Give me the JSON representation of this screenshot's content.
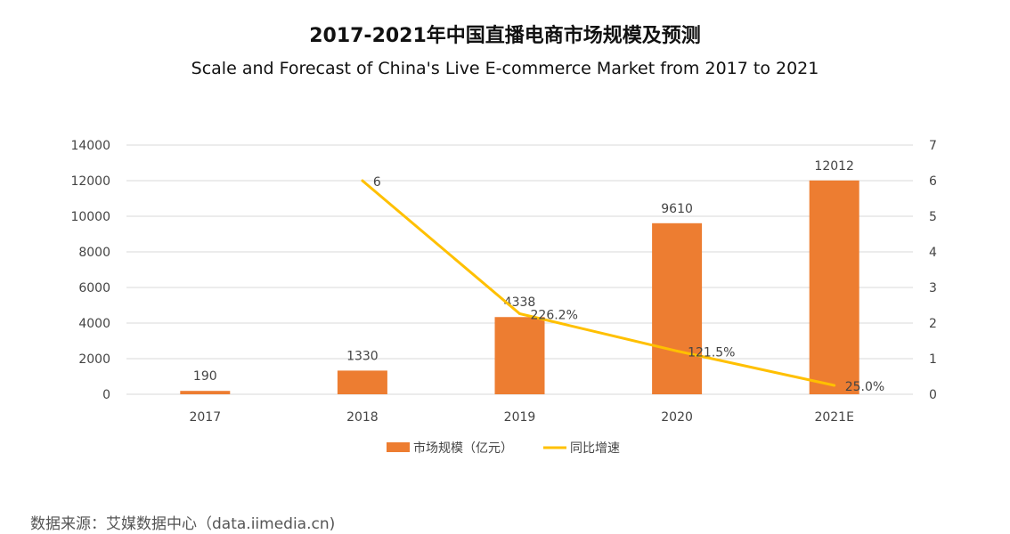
{
  "chart_data": {
    "type": "bar",
    "title": "2017-2021年中国直播电商市场规模及预测",
    "subtitle": "Scale and Forecast of China's Live E-commerce Market from 2017 to 2021",
    "categories": [
      "2017",
      "2018",
      "2019",
      "2020",
      "2021E"
    ],
    "series": [
      {
        "name": "市场规模（亿元）",
        "type": "bar",
        "axis": "left",
        "color": "#ED7D31",
        "values": [
          190,
          1330,
          4338,
          9610,
          12012
        ],
        "labels": [
          "190",
          "1330",
          "4338",
          "9610",
          "12012"
        ]
      },
      {
        "name": "同比增速",
        "type": "line",
        "axis": "right",
        "color": "#FFC000",
        "values": [
          null,
          6,
          2.262,
          1.215,
          0.25
        ],
        "labels": [
          "",
          "6",
          "226.2%",
          "121.5%",
          "25.0%"
        ]
      }
    ],
    "ylim": [
      0,
      14000
    ],
    "yticks": [
      "0",
      "2000",
      "4000",
      "6000",
      "8000",
      "10000",
      "12000",
      "14000"
    ],
    "y2lim": [
      0,
      7
    ],
    "y2ticks": [
      "0",
      "1",
      "2",
      "3",
      "4",
      "5",
      "6",
      "7"
    ],
    "grid": true,
    "legend": "bottom"
  },
  "source": "数据来源：艾媒数据中心（data.iimedia.cn)"
}
